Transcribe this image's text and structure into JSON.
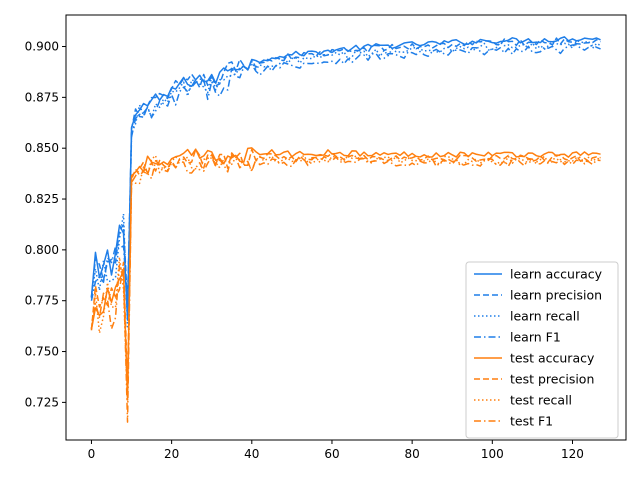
{
  "chart_data": {
    "type": "line",
    "title": "",
    "xlabel": "",
    "ylabel": "",
    "xlim": [
      -6.35,
      133.35
    ],
    "ylim": [
      0.7065,
      0.9155
    ],
    "xticks": [
      0,
      20,
      40,
      60,
      80,
      100,
      120
    ],
    "yticks": [
      0.725,
      0.75,
      0.775,
      0.8,
      0.825,
      0.85,
      0.875,
      0.9
    ],
    "ytick_labels": [
      "0.725",
      "0.750",
      "0.775",
      "0.800",
      "0.825",
      "0.850",
      "0.875",
      "0.900"
    ],
    "grid": false,
    "legend_position": "bottom-right",
    "colors": {
      "learn": "#1f7ee8",
      "test": "#ff7f0e"
    },
    "anchors": {
      "learn": {
        "x": [
          0,
          1,
          2,
          3,
          4,
          5,
          6,
          7,
          8,
          9,
          10,
          11,
          12,
          14,
          16,
          18,
          20,
          22,
          24,
          26,
          28,
          30,
          32,
          34,
          36,
          38,
          40,
          42,
          45,
          50,
          55,
          60,
          65,
          70,
          80,
          90,
          100,
          110,
          120,
          127
        ],
        "y": [
          0.775,
          0.792,
          0.786,
          0.79,
          0.795,
          0.79,
          0.8,
          0.808,
          0.812,
          0.772,
          0.86,
          0.866,
          0.869,
          0.872,
          0.874,
          0.873,
          0.879,
          0.881,
          0.882,
          0.885,
          0.884,
          0.883,
          0.886,
          0.889,
          0.891,
          0.891,
          0.892,
          0.893,
          0.895,
          0.896,
          0.897,
          0.898,
          0.899,
          0.9,
          0.901,
          0.902,
          0.903,
          0.903,
          0.904,
          0.904
        ]
      },
      "test": {
        "x": [
          0,
          1,
          2,
          3,
          4,
          5,
          6,
          7,
          8,
          9,
          10,
          11,
          12,
          14,
          16,
          18,
          20,
          22,
          24,
          26,
          28,
          30,
          35,
          40,
          45,
          50,
          60,
          70,
          80,
          90,
          100,
          110,
          120,
          127
        ],
        "y": [
          0.757,
          0.776,
          0.772,
          0.776,
          0.782,
          0.775,
          0.78,
          0.789,
          0.788,
          0.729,
          0.836,
          0.84,
          0.841,
          0.843,
          0.844,
          0.841,
          0.843,
          0.845,
          0.846,
          0.847,
          0.846,
          0.845,
          0.846,
          0.847,
          0.848,
          0.847,
          0.848,
          0.847,
          0.847,
          0.847,
          0.847,
          0.847,
          0.847,
          0.847
        ]
      }
    },
    "series": [
      {
        "name": "learn accuracy",
        "group": "learn",
        "style": "solid",
        "offset": 0.0,
        "noise": 0.002
      },
      {
        "name": "learn precision",
        "group": "learn",
        "style": "dashed",
        "offset": -0.001,
        "noise": 0.0025
      },
      {
        "name": "learn recall",
        "group": "learn",
        "style": "dotted",
        "offset": -0.003,
        "noise": 0.003
      },
      {
        "name": "learn F1",
        "group": "learn",
        "style": "dashdot",
        "offset": -0.005,
        "noise": 0.003
      },
      {
        "name": "test accuracy",
        "group": "test",
        "style": "solid",
        "offset": 0.0,
        "noise": 0.002
      },
      {
        "name": "test precision",
        "group": "test",
        "style": "dashed",
        "offset": -0.002,
        "noise": 0.0025
      },
      {
        "name": "test recall",
        "group": "test",
        "style": "dotted",
        "offset": -0.003,
        "noise": 0.003
      },
      {
        "name": "test F1",
        "group": "test",
        "style": "dashdot",
        "offset": -0.004,
        "noise": 0.003
      }
    ]
  }
}
